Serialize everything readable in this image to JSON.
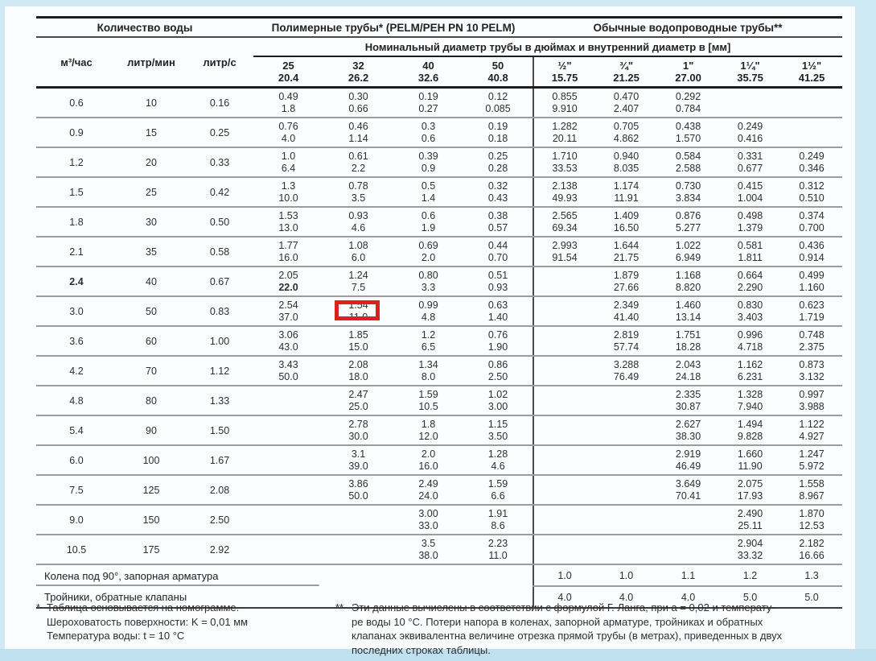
{
  "page": {
    "frame_color": "#cfe9f5",
    "frame_bottom_color": "#bfe1ef",
    "background": "#fbfcfd"
  },
  "table": {
    "group_headers": {
      "water": "Количество воды",
      "polymer": "Полимерные трубы* (PELM/PEH PN 10 PELM)",
      "regular": "Обычные водопроводные трубы**"
    },
    "diameter_header": "Номинальный диаметр трубы в дюймах и внутренний диаметр в [мм]",
    "flow_columns": [
      "м³/час",
      "литр/мин",
      "литр/с"
    ],
    "pipe_columns": [
      {
        "size": "25",
        "inner": "20.4"
      },
      {
        "size": "32",
        "inner": "26.2"
      },
      {
        "size": "40",
        "inner": "32.6"
      },
      {
        "size": "50",
        "inner": "40.8"
      },
      {
        "size": "½\"",
        "inner": "15.75"
      },
      {
        "size": "¾\"",
        "inner": "21.25"
      },
      {
        "size": "1\"",
        "inner": "27.00"
      },
      {
        "size": "1¼\"",
        "inner": "35.75"
      },
      {
        "size": "1½\"",
        "inner": "41.25"
      }
    ],
    "rows": [
      {
        "flow": [
          "0.6",
          "10",
          "0.16"
        ],
        "cells": [
          [
            "0.49",
            "1.8"
          ],
          [
            "0.30",
            "0.66"
          ],
          [
            "0.19",
            "0.27"
          ],
          [
            "0.12",
            "0.085"
          ],
          [
            "0.855",
            "9.910"
          ],
          [
            "0.470",
            "2.407"
          ],
          [
            "0.292",
            "0.784"
          ],
          null,
          null
        ]
      },
      {
        "flow": [
          "0.9",
          "15",
          "0.25"
        ],
        "cells": [
          [
            "0.76",
            "4.0"
          ],
          [
            "0.46",
            "1.14"
          ],
          [
            "0.3",
            "0.6"
          ],
          [
            "0.19",
            "0.18"
          ],
          [
            "1.282",
            "20.11"
          ],
          [
            "0.705",
            "4.862"
          ],
          [
            "0.438",
            "1.570"
          ],
          [
            "0.249",
            "0.416"
          ],
          null
        ]
      },
      {
        "flow": [
          "1.2",
          "20",
          "0.33"
        ],
        "cells": [
          [
            "1.0",
            "6.4"
          ],
          [
            "0.61",
            "2.2"
          ],
          [
            "0.39",
            "0.9"
          ],
          [
            "0.25",
            "0.28"
          ],
          [
            "1.710",
            "33.53"
          ],
          [
            "0.940",
            "8.035"
          ],
          [
            "0.584",
            "2.588"
          ],
          [
            "0.331",
            "0.677"
          ],
          [
            "0.249",
            "0.346"
          ]
        ]
      },
      {
        "flow": [
          "1.5",
          "25",
          "0.42"
        ],
        "cells": [
          [
            "1.3",
            "10.0"
          ],
          [
            "0.78",
            "3.5"
          ],
          [
            "0.5",
            "1.4"
          ],
          [
            "0.32",
            "0.43"
          ],
          [
            "2.138",
            "49.93"
          ],
          [
            "1.174",
            "11.91"
          ],
          [
            "0.730",
            "3.834"
          ],
          [
            "0.415",
            "1.004"
          ],
          [
            "0.312",
            "0.510"
          ]
        ]
      },
      {
        "flow": [
          "1.8",
          "30",
          "0.50"
        ],
        "cells": [
          [
            "1.53",
            "13.0"
          ],
          [
            "0.93",
            "4.6"
          ],
          [
            "0.6",
            "1.9"
          ],
          [
            "0.38",
            "0.57"
          ],
          [
            "2.565",
            "69.34"
          ],
          [
            "1.409",
            "16.50"
          ],
          [
            "0.876",
            "5.277"
          ],
          [
            "0.498",
            "1.379"
          ],
          [
            "0.374",
            "0.700"
          ]
        ]
      },
      {
        "flow": [
          "2.1",
          "35",
          "0.58"
        ],
        "cells": [
          [
            "1.77",
            "16.0"
          ],
          [
            "1.08",
            "6.0"
          ],
          [
            "0.69",
            "2.0"
          ],
          [
            "0.44",
            "0.70"
          ],
          [
            "2.993",
            "91.54"
          ],
          [
            "1.644",
            "21.75"
          ],
          [
            "1.022",
            "6.949"
          ],
          [
            "0.581",
            "1.811"
          ],
          [
            "0.436",
            "0.914"
          ]
        ]
      },
      {
        "flow": [
          "2.4",
          "40",
          "0.67"
        ],
        "bold_flow": [
          0
        ],
        "bold_bottom": [
          0
        ],
        "cells": [
          [
            "2.05",
            "22.0"
          ],
          [
            "1.24",
            "7.5"
          ],
          [
            "0.80",
            "3.3"
          ],
          [
            "0.51",
            "0.93"
          ],
          null,
          [
            "1.879",
            "27.66"
          ],
          [
            "1.168",
            "8.820"
          ],
          [
            "0.664",
            "2.290"
          ],
          [
            "0.499",
            "1.160"
          ]
        ]
      },
      {
        "flow": [
          "3.0",
          "50",
          "0.83"
        ],
        "cells": [
          [
            "2.54",
            "37.0"
          ],
          [
            "1.54",
            "11.0"
          ],
          [
            "0.99",
            "4.8"
          ],
          [
            "0.63",
            "1.40"
          ],
          null,
          [
            "2.349",
            "41.40"
          ],
          [
            "1.460",
            "13.14"
          ],
          [
            "0.830",
            "3.403"
          ],
          [
            "0.623",
            "1.719"
          ]
        ]
      },
      {
        "flow": [
          "3.6",
          "60",
          "1.00"
        ],
        "cells": [
          [
            "3.06",
            "43.0"
          ],
          [
            "1.85",
            "15.0"
          ],
          [
            "1.2",
            "6.5"
          ],
          [
            "0.76",
            "1.90"
          ],
          null,
          [
            "2.819",
            "57.74"
          ],
          [
            "1.751",
            "18.28"
          ],
          [
            "0.996",
            "4.718"
          ],
          [
            "0.748",
            "2.375"
          ]
        ]
      },
      {
        "flow": [
          "4.2",
          "70",
          "1.12"
        ],
        "cells": [
          [
            "3.43",
            "50.0"
          ],
          [
            "2.08",
            "18.0"
          ],
          [
            "1.34",
            "8.0"
          ],
          [
            "0.86",
            "2.50"
          ],
          null,
          [
            "3.288",
            "76.49"
          ],
          [
            "2.043",
            "24.18"
          ],
          [
            "1.162",
            "6.231"
          ],
          [
            "0.873",
            "3.132"
          ]
        ]
      },
      {
        "flow": [
          "4.8",
          "80",
          "1.33"
        ],
        "cells": [
          null,
          [
            "2.47",
            "25.0"
          ],
          [
            "1.59",
            "10.5"
          ],
          [
            "1.02",
            "3.00"
          ],
          null,
          null,
          [
            "2.335",
            "30.87"
          ],
          [
            "1.328",
            "7.940"
          ],
          [
            "0.997",
            "3.988"
          ]
        ]
      },
      {
        "flow": [
          "5.4",
          "90",
          "1.50"
        ],
        "cells": [
          null,
          [
            "2.78",
            "30.0"
          ],
          [
            "1.8",
            "12.0"
          ],
          [
            "1.15",
            "3.50"
          ],
          null,
          null,
          [
            "2.627",
            "38.30"
          ],
          [
            "1.494",
            "9.828"
          ],
          [
            "1.122",
            "4.927"
          ]
        ]
      },
      {
        "flow": [
          "6.0",
          "100",
          "1.67"
        ],
        "cells": [
          null,
          [
            "3.1",
            "39.0"
          ],
          [
            "2.0",
            "16.0"
          ],
          [
            "1.28",
            "4.6"
          ],
          null,
          null,
          [
            "2.919",
            "46.49"
          ],
          [
            "1.660",
            "11.90"
          ],
          [
            "1.247",
            "5.972"
          ]
        ]
      },
      {
        "flow": [
          "7.5",
          "125",
          "2.08"
        ],
        "cells": [
          null,
          [
            "3.86",
            "50.0"
          ],
          [
            "2.49",
            "24.0"
          ],
          [
            "1.59",
            "6.6"
          ],
          null,
          null,
          [
            "3.649",
            "70.41"
          ],
          [
            "2.075",
            "17.93"
          ],
          [
            "1.558",
            "8.967"
          ]
        ]
      },
      {
        "flow": [
          "9.0",
          "150",
          "2.50"
        ],
        "cells": [
          null,
          null,
          [
            "3.00",
            "33.0"
          ],
          [
            "1.91",
            "8.6"
          ],
          null,
          null,
          null,
          [
            "2.490",
            "25.11"
          ],
          [
            "1.870",
            "12.53"
          ]
        ]
      },
      {
        "flow": [
          "10.5",
          "175",
          "2.92"
        ],
        "cells": [
          null,
          null,
          [
            "3.5",
            "38.0"
          ],
          [
            "2.23",
            "11.0"
          ],
          null,
          null,
          null,
          [
            "2.904",
            "33.32"
          ],
          [
            "2.182",
            "16.66"
          ]
        ]
      }
    ],
    "footer_rows": [
      {
        "label": "Колена под 90°, запорная арматура",
        "values": [
          "1.0",
          "1.0",
          "1.1",
          "1.2",
          "1.3"
        ]
      },
      {
        "label": "Тройники, обратные клапаны",
        "values": [
          "4.0",
          "4.0",
          "4.0",
          "5.0",
          "5.0"
        ]
      }
    ]
  },
  "highlight": {
    "row_index": 7,
    "col_index": 1,
    "color": "#d8231f",
    "boxed_value": "11.0"
  },
  "footnotes": {
    "left": {
      "marker": "*",
      "lines": [
        "Таблица основывается на номограмме.",
        "Шероховатость поверхности: K = 0,01 мм",
        "Температура воды: t = 10 °C"
      ]
    },
    "right": {
      "marker": "**",
      "lines": [
        "Эти данные вычислены в соответствии с формулой Г. Ланга, при a = 0,02 и температу-",
        "ре воды 10 °C. Потери напора в коленах, запорной арматуре, тройниках и обратных",
        "клапанах эквивалентна величине отрезка прямой трубы (в метрах), приведенных в двух",
        "последних строках таблицы."
      ]
    }
  }
}
